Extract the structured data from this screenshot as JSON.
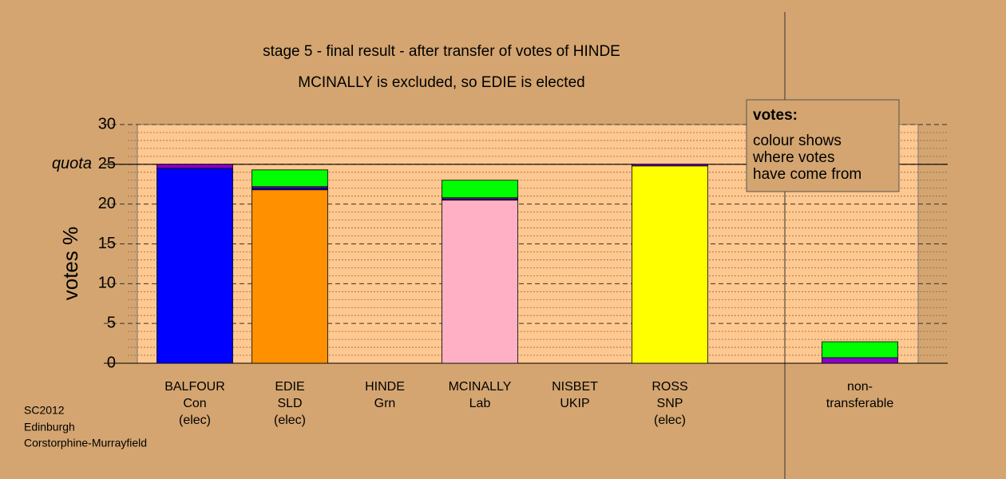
{
  "chart_data": {
    "type": "stacked-bar",
    "title": "stage 5 - final result - after transfer of votes of HINDE",
    "subtitle": "MCINALLY is excluded, so EDIE is elected",
    "ylabel": "votes %",
    "categories": [
      [
        "BALFOUR",
        "Con",
        "(elec)"
      ],
      [
        "EDIE",
        "SLD",
        "(elec)"
      ],
      [
        "HINDE",
        "Grn"
      ],
      [
        "MCINALLY",
        "Lab"
      ],
      [
        "NISBET",
        "UKIP"
      ],
      [
        "ROSS",
        "SNP",
        "(elec)"
      ],
      null,
      [
        "non-",
        "transferable"
      ]
    ],
    "series": [
      {
        "colors": [
          "#0000ff",
          "#ff9000",
          "#00ff00",
          "#ffb0c4",
          "#8a00c8",
          "#ffff00",
          null,
          null
        ],
        "values": [
          24.5,
          21.8,
          0,
          20.5,
          0,
          24.8,
          null,
          0
        ]
      },
      {
        "color": "#0000ff",
        "values": [
          0,
          0.2,
          0,
          0.1,
          0,
          0,
          null,
          0
        ]
      },
      {
        "color": "#8a00c8",
        "values": [
          0.5,
          0.2,
          0,
          0.2,
          0,
          0.2,
          null,
          0.7
        ]
      },
      {
        "color": "#00ff00",
        "values": [
          0,
          2.1,
          0,
          2.2,
          0,
          0,
          null,
          2.0
        ]
      }
    ],
    "ylim": [
      0,
      30
    ],
    "yticks": [
      0,
      5,
      10,
      15,
      20,
      25,
      30
    ],
    "minor_yticks": [
      1,
      2,
      3,
      4,
      6,
      7,
      8,
      9,
      11,
      12,
      13,
      14,
      16,
      17,
      18,
      19,
      21,
      22,
      23,
      24,
      26,
      27,
      28,
      29
    ],
    "quota": {
      "value": 25,
      "label": "quota"
    },
    "grid": true,
    "legend": {
      "title": "votes:",
      "lines": [
        "colour shows",
        "where votes",
        "have come from"
      ]
    },
    "footer": [
      "SC2012",
      "Edinburgh",
      "Corstorphine-Murrayfield"
    ]
  }
}
